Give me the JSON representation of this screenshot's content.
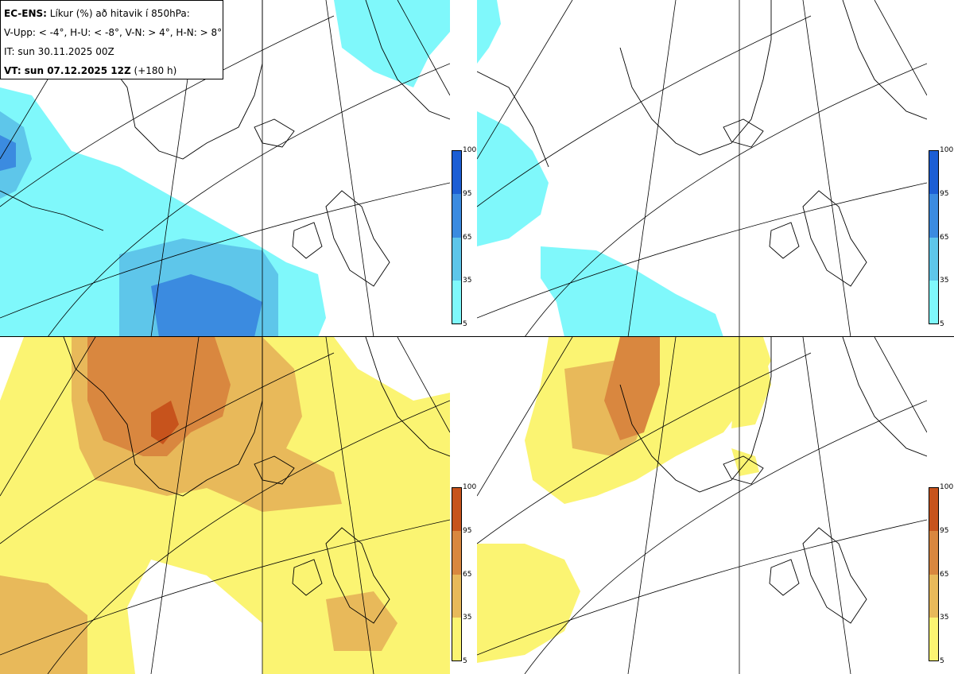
{
  "title": {
    "model": "EC-ENS:",
    "description": "Líkur (%) að hitavik í 850hPa:",
    "thresholds": "V-Upp: < -4°, H-U: < -8°, V-N: > 4°, H-N: > 8°",
    "initial_time": "IT: sun 30.11.2025 00Z",
    "valid_prefix": "VT: sun 07.12.2025 12Z",
    "valid_suffix": "(+180 h)"
  },
  "panels": [
    {
      "id": "V-Upp",
      "meaning": "cold anomaly < -4°",
      "palette": "blue"
    },
    {
      "id": "H-U",
      "meaning": "cold anomaly < -8°",
      "palette": "blue"
    },
    {
      "id": "V-N",
      "meaning": "warm anomaly > 4°",
      "palette": "orange"
    },
    {
      "id": "H-N",
      "meaning": "warm anomaly > 8°",
      "palette": "orange"
    }
  ],
  "legend": {
    "ticks": [
      "100",
      "95",
      "65",
      "35",
      "5"
    ],
    "blue_colors": [
      "#1c5ed4",
      "#3b8be0",
      "#5ec6ea",
      "#7ff8fb"
    ],
    "orange_colors": [
      "#c7531c",
      "#d9873f",
      "#e8b95a",
      "#fbf472"
    ]
  }
}
